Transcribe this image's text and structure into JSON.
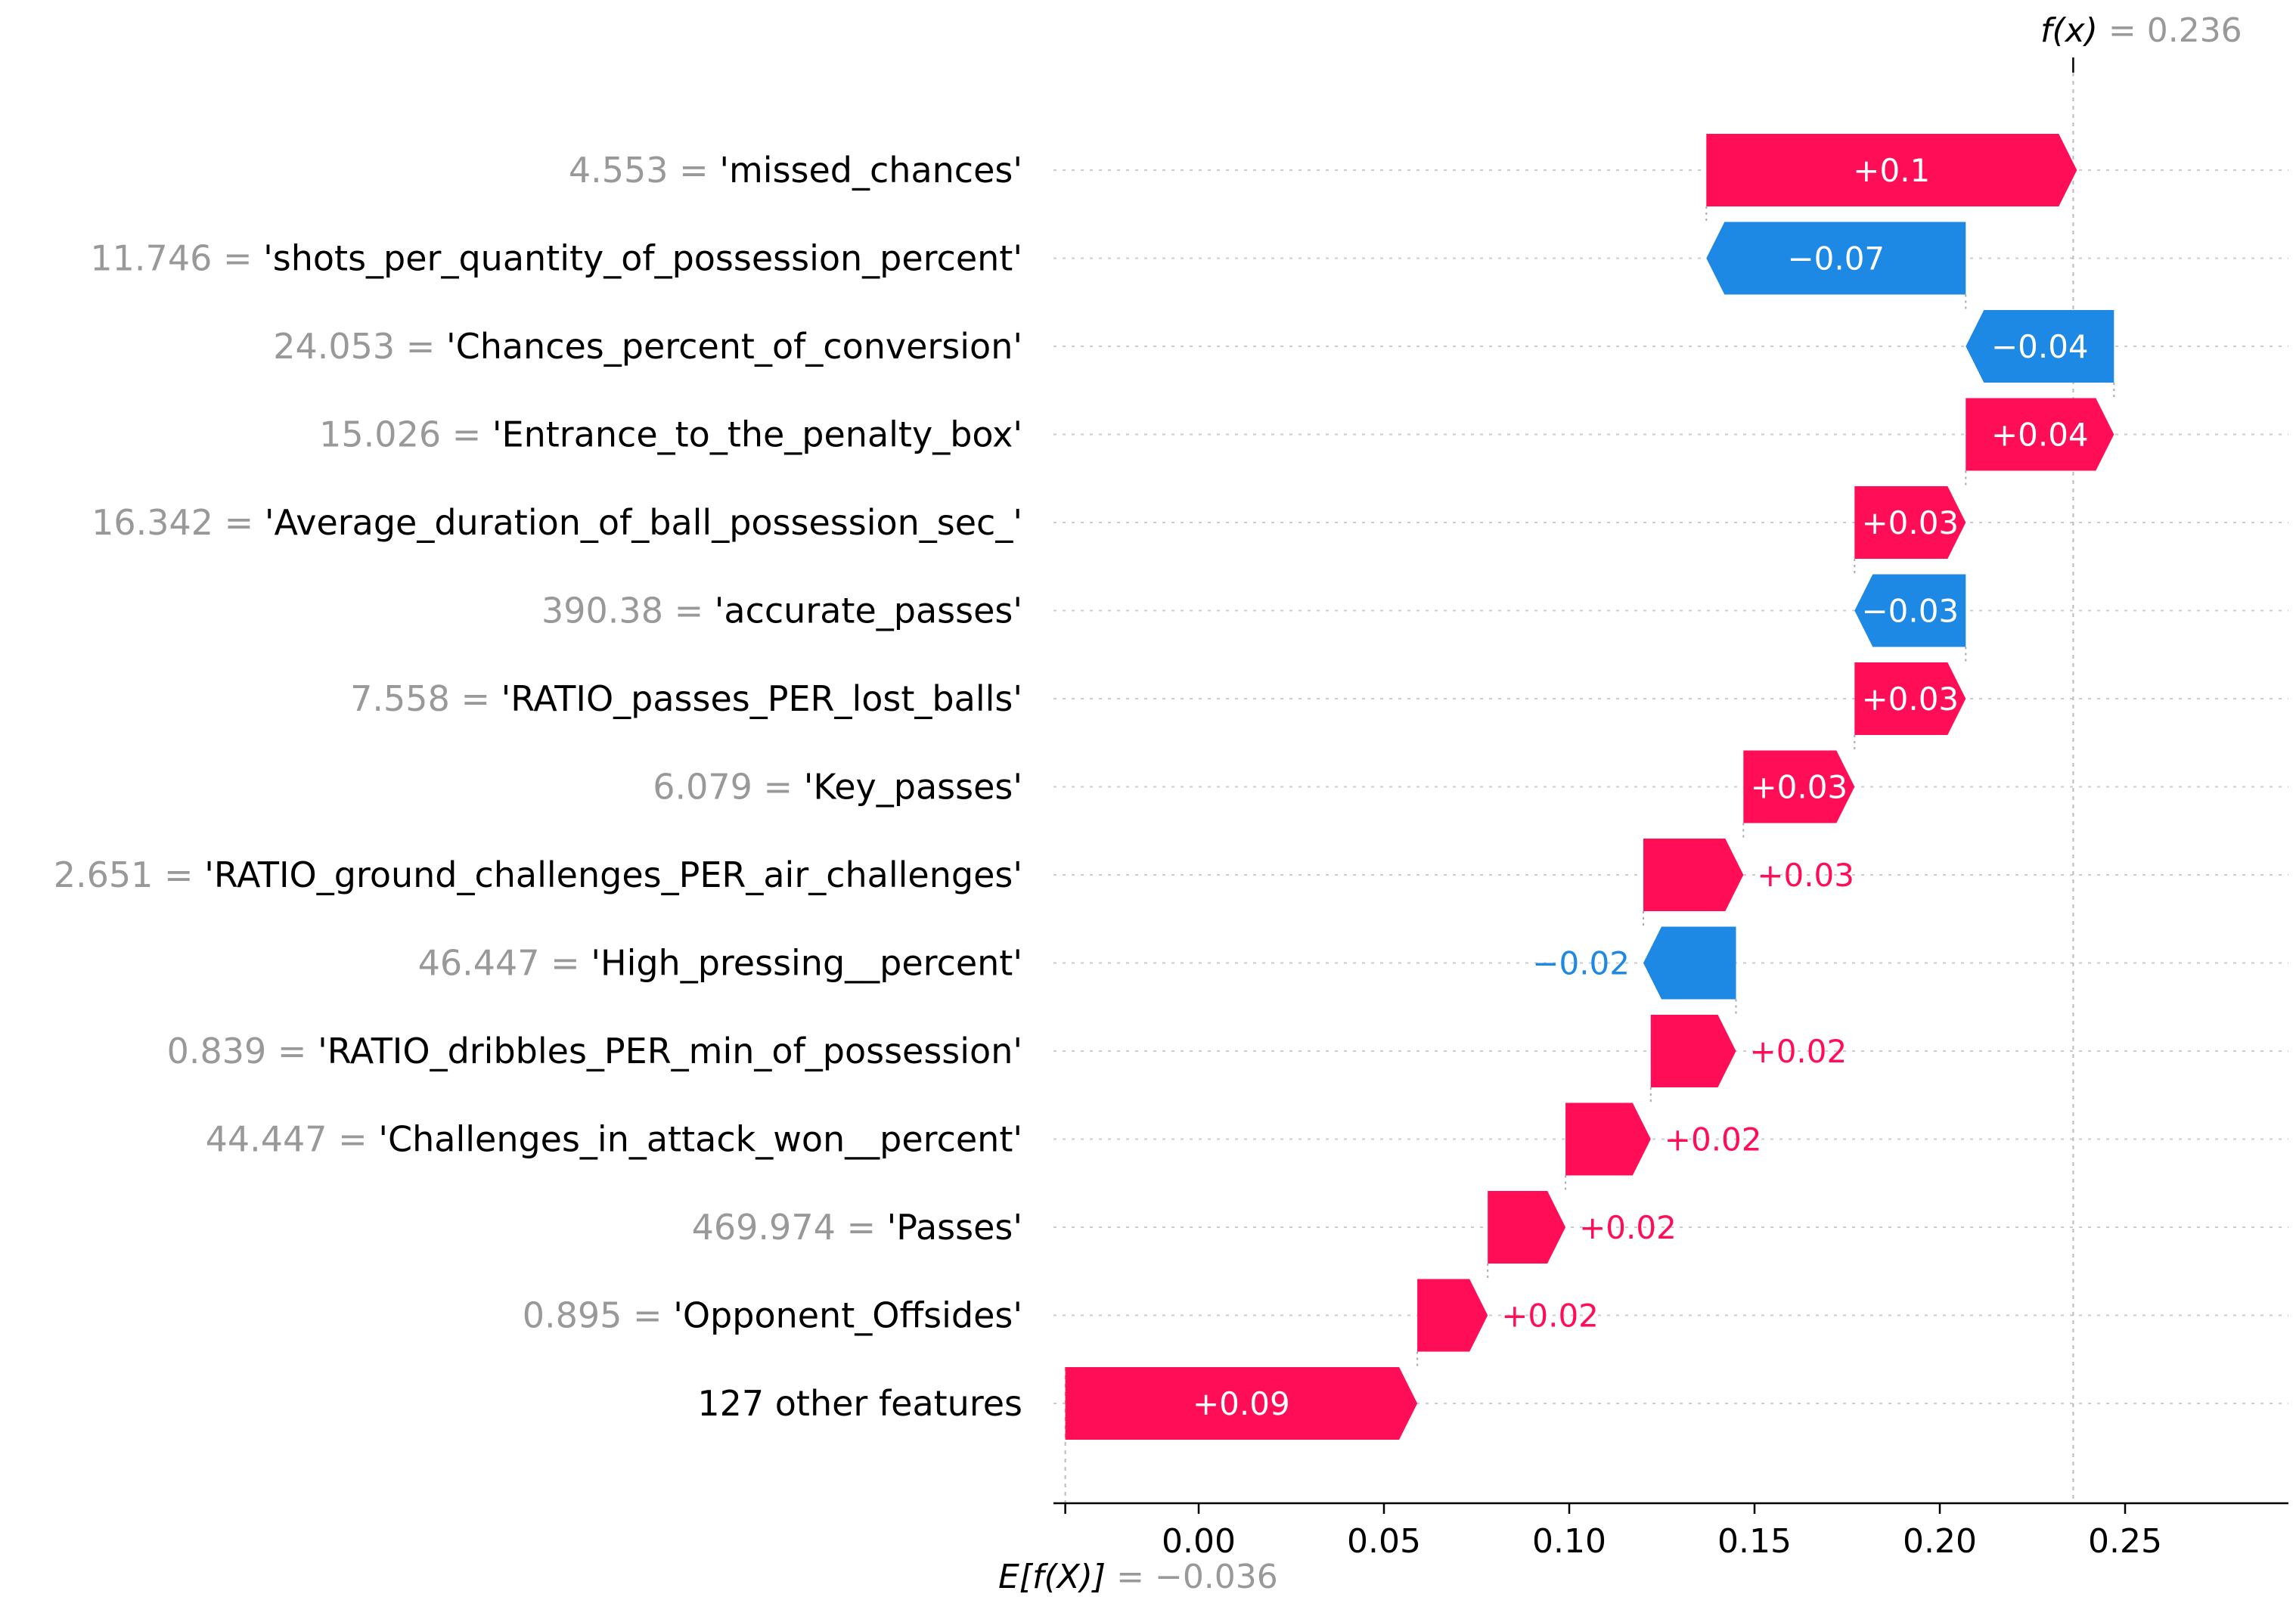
{
  "colors": {
    "positive": "#ff0d57",
    "negative": "#1e88e5",
    "value_gray": "#999999",
    "grid": "#cccccc"
  },
  "chart_data": {
    "type": "waterfall",
    "base_value": -0.036,
    "base_label": "E[f(X)]",
    "base_label_text": "= −0.036",
    "output_value": 0.236,
    "output_label": "f(x)",
    "output_label_text": "= 0.236",
    "xlim": [
      -0.036,
      0.29
    ],
    "xticks": [
      0.0,
      0.05,
      0.1,
      0.15,
      0.2,
      0.25
    ],
    "xtick_labels": [
      "0.00",
      "0.05",
      "0.10",
      "0.15",
      "0.20",
      "0.25"
    ],
    "features": [
      {
        "value": "4.553",
        "name": "'missed_chances'",
        "shap": 0.1,
        "label": "+0.1",
        "label_inside": true
      },
      {
        "value": "11.746",
        "name": "'shots_per_quantity_of_possession_percent'",
        "shap": -0.07,
        "label": "−0.07",
        "label_inside": true
      },
      {
        "value": "24.053",
        "name": "'Chances_percent_of_conversion'",
        "shap": -0.04,
        "label": "−0.04",
        "label_inside": true
      },
      {
        "value": "15.026",
        "name": "'Entrance_to_the_penalty_box'",
        "shap": 0.04,
        "label": "+0.04",
        "label_inside": true
      },
      {
        "value": "16.342",
        "name": "'Average_duration_of_ball_possession_sec_'",
        "shap": 0.03,
        "label": "+0.03",
        "label_inside": true
      },
      {
        "value": "390.38",
        "name": "'accurate_passes'",
        "shap": -0.03,
        "label": "−0.03",
        "label_inside": true
      },
      {
        "value": "7.558",
        "name": "'RATIO_passes_PER_lost_balls'",
        "shap": 0.03,
        "label": "+0.03",
        "label_inside": true
      },
      {
        "value": "6.079",
        "name": "'Key_passes'",
        "shap": 0.03,
        "label": "+0.03",
        "label_inside": true
      },
      {
        "value": "2.651",
        "name": "'RATIO_ground_challenges_PER_air_challenges'",
        "shap": 0.027,
        "label": "+0.03",
        "label_inside": false
      },
      {
        "value": "46.447",
        "name": "'High_pressing__percent'",
        "shap": -0.025,
        "label": "−0.02",
        "label_inside": false
      },
      {
        "value": "0.839",
        "name": "'RATIO_dribbles_PER_min_of_possession'",
        "shap": 0.023,
        "label": "+0.02",
        "label_inside": false
      },
      {
        "value": "44.447",
        "name": "'Challenges_in_attack_won__percent'",
        "shap": 0.023,
        "label": "+0.02",
        "label_inside": false
      },
      {
        "value": "469.974",
        "name": "'Passes'",
        "shap": 0.021,
        "label": "+0.02",
        "label_inside": false
      },
      {
        "value": "0.895",
        "name": "'Opponent_Offsides'",
        "shap": 0.019,
        "label": "+0.02",
        "label_inside": false
      },
      {
        "value": "",
        "name": "127 other features",
        "shap": 0.095,
        "label": "+0.09",
        "label_inside": true
      }
    ]
  }
}
